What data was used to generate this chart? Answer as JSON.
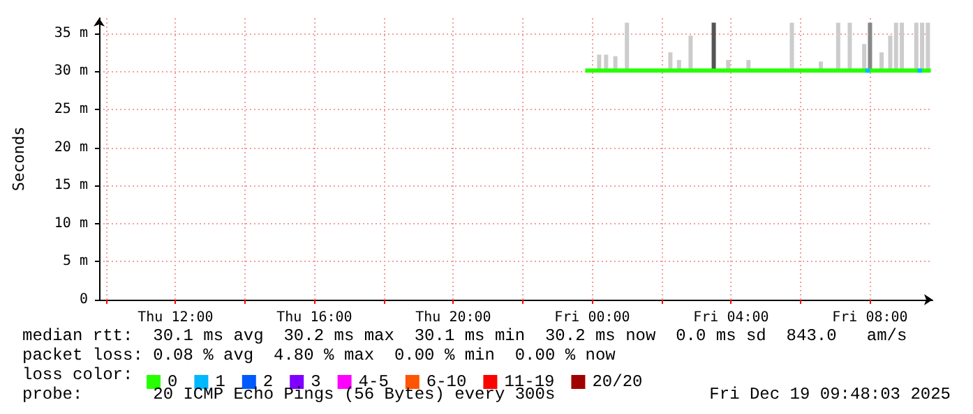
{
  "chart_data": {
    "type": "line",
    "ylabel": "Seconds",
    "legend_title": "loss color:",
    "legend": "bottom",
    "grid": true,
    "line_style": "solid",
    "marker": "none",
    "xlim": [
      "2025-12-18T09:48",
      "2025-12-19T09:48"
    ],
    "xticks": [
      {
        "value": "2025-12-18T10:00",
        "label": null
      },
      {
        "value": "2025-12-18T12:00",
        "label": "Thu 12:00"
      },
      {
        "value": "2025-12-18T14:00",
        "label": null
      },
      {
        "value": "2025-12-18T16:00",
        "label": "Thu 16:00"
      },
      {
        "value": "2025-12-18T18:00",
        "label": null
      },
      {
        "value": "2025-12-18T20:00",
        "label": "Thu 20:00"
      },
      {
        "value": "2025-12-18T22:00",
        "label": null
      },
      {
        "value": "2025-12-19T00:00",
        "label": "Fri 00:00"
      },
      {
        "value": "2025-12-19T02:00",
        "label": null
      },
      {
        "value": "2025-12-19T04:00",
        "label": "Fri 04:00"
      },
      {
        "value": "2025-12-19T06:00",
        "label": null
      },
      {
        "value": "2025-12-19T08:00",
        "label": "Fri 08:00"
      }
    ],
    "ylim": [
      0,
      37
    ],
    "yticks": [
      {
        "value": 0,
        "label": "0"
      },
      {
        "value": 5,
        "label": "5 m"
      },
      {
        "value": 10,
        "label": "10 m"
      },
      {
        "value": 15,
        "label": "15 m"
      },
      {
        "value": 20,
        "label": "20 m"
      },
      {
        "value": 25,
        "label": "25 m"
      },
      {
        "value": 30,
        "label": "30 m"
      },
      {
        "value": 35,
        "label": "35 m"
      }
    ],
    "annotations": [
      "median rtt:  30.1 ms avg  30.2 ms max  30.1 ms min  30.2 ms now  0.0 ms sd  843.0   am/s",
      "packet loss: 0.08 % avg  4.80 % max  0.00 % min  0.00 % now",
      "probe:       20 ICMP Echo Pings (56 Bytes) every 300s",
      "Fri Dec 19 09:48:03 2025"
    ],
    "series": [
      {
        "type": "bar",
        "colors": [
          "#cccccc",
          "#cccccc",
          "#cccccc",
          "#cccccc",
          "#cccccc",
          "#cccccc",
          "#cccccc",
          "#555555",
          "#cccccc",
          "#cccccc",
          "#cccccc",
          "#cccccc",
          "#cccccc",
          "#cccccc",
          "#cccccc",
          "#888888",
          "#cccccc",
          "#cccccc",
          "#cccccc",
          "#cccccc",
          "#cccccc",
          "#cccccc",
          "#cccccc"
        ],
        "x": [
          "2025-12-19T00:12",
          "2025-12-19T00:24",
          "2025-12-19T00:40",
          "2025-12-19T01:00",
          "2025-12-19T02:15",
          "2025-12-19T02:30",
          "2025-12-19T02:50",
          "2025-12-19T03:30",
          "2025-12-19T03:55",
          "2025-12-19T04:30",
          "2025-12-19T05:45",
          "2025-12-19T06:35",
          "2025-12-19T07:05",
          "2025-12-19T07:25",
          "2025-12-19T07:50",
          "2025-12-19T08:00",
          "2025-12-19T08:20",
          "2025-12-19T08:35",
          "2025-12-19T08:45",
          "2025-12-19T08:55",
          "2025-12-19T09:20",
          "2025-12-19T09:30",
          "2025-12-19T09:40"
        ],
        "base": [
          30,
          30,
          30,
          30,
          30,
          30,
          30,
          30,
          30,
          30,
          30,
          30,
          30,
          30,
          30,
          30,
          30,
          30,
          30,
          30,
          30,
          30,
          30
        ],
        "values": [
          2.2,
          2.2,
          2.0,
          6.4,
          2.5,
          1.5,
          4.7,
          6.4,
          1.5,
          1.5,
          6.4,
          1.3,
          6.4,
          6.4,
          3.6,
          6.4,
          2.5,
          4.7,
          6.4,
          6.4,
          6.4,
          6.4,
          6.4
        ]
      },
      {
        "name": "0",
        "color": "#26ff00",
        "x": [
          "2025-12-18T23:48",
          "2025-12-19T02:00",
          "2025-12-19T04:00",
          "2025-12-19T06:00",
          "2025-12-19T08:00",
          "2025-12-19T09:45"
        ],
        "values": [
          30.1,
          30.1,
          30.1,
          30.1,
          30.1,
          30.1
        ]
      },
      {
        "name": "1",
        "color": "#00b8ff",
        "x": [
          "2025-12-19T07:52",
          "2025-12-19T08:00",
          "2025-12-19T08:01",
          "2025-12-19T09:22",
          "2025-12-19T09:30"
        ],
        "values": [
          30.1,
          30.1,
          null,
          30.1,
          30.1
        ]
      },
      {
        "name": "2",
        "color": "#0059ff"
      },
      {
        "name": "3",
        "color": "#7e00ff"
      },
      {
        "name": "4-5",
        "color": "#ff00ff"
      },
      {
        "name": "6-10",
        "color": "#ff5500"
      },
      {
        "name": "11-19",
        "color": "#ff0000"
      },
      {
        "name": "20/20",
        "color": "#a10000"
      }
    ]
  }
}
